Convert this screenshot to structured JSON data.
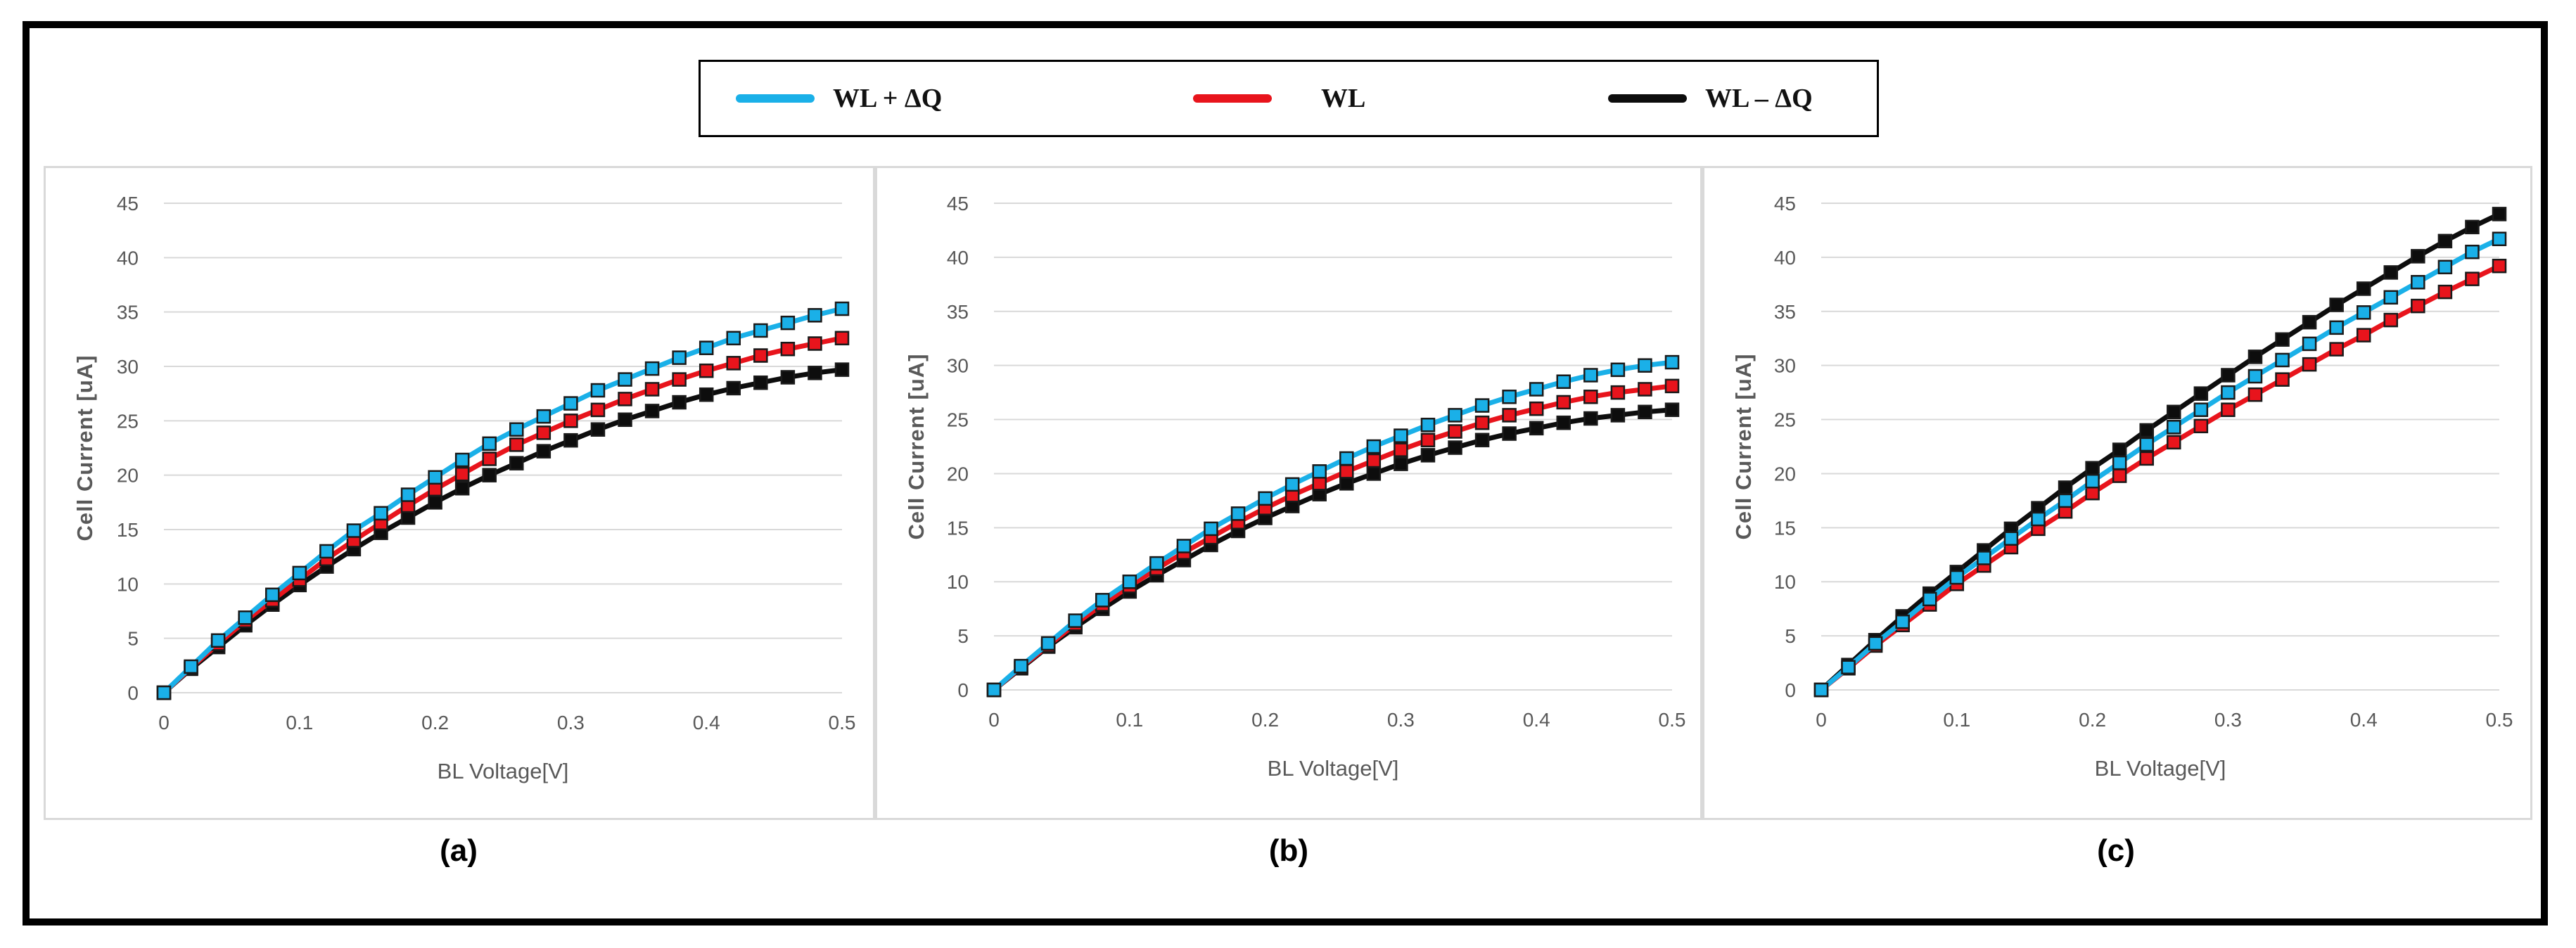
{
  "legend": {
    "items": [
      {
        "label": "WL + ΔQ",
        "color": "#1ab0e8"
      },
      {
        "label": "WL",
        "color": "#e8141c"
      },
      {
        "label": "WL – ΔQ",
        "color": "#0d0d0d"
      }
    ]
  },
  "captions": [
    "(a)",
    "(b)",
    "(c)"
  ],
  "chart_data": [
    {
      "type": "line",
      "title": "",
      "xlabel": "BL Voltage[V]",
      "ylabel": "Cell Current [uA]",
      "xlim": [
        0,
        0.5
      ],
      "ylim": [
        0,
        45
      ],
      "xticks": [
        "0",
        "0.1",
        "0.2",
        "0.3",
        "0.4",
        "0.5"
      ],
      "yticks": [
        "0",
        "5",
        "10",
        "15",
        "20",
        "25",
        "30",
        "35",
        "40",
        "45"
      ],
      "grid": true,
      "x": [
        0,
        0.02,
        0.04,
        0.06,
        0.08,
        0.1,
        0.12,
        0.14,
        0.16,
        0.18,
        0.2,
        0.22,
        0.24,
        0.26,
        0.28,
        0.3,
        0.32,
        0.34,
        0.36,
        0.38,
        0.4,
        0.42,
        0.44,
        0.46,
        0.48,
        0.5
      ],
      "series": [
        {
          "name": "WL + ΔQ",
          "color": "#1ab0e8",
          "values": [
            0,
            2.4,
            4.8,
            6.9,
            9.0,
            11.0,
            13.0,
            14.9,
            16.5,
            18.2,
            19.8,
            21.4,
            22.9,
            24.2,
            25.4,
            26.6,
            27.8,
            28.8,
            29.8,
            30.8,
            31.7,
            32.6,
            33.3,
            34.0,
            34.7,
            35.3
          ]
        },
        {
          "name": "WL",
          "color": "#e8141c",
          "values": [
            0,
            2.3,
            4.5,
            6.6,
            8.5,
            10.4,
            12.3,
            14.0,
            15.6,
            17.2,
            18.7,
            20.1,
            21.5,
            22.8,
            23.9,
            25.0,
            26.0,
            27.0,
            27.9,
            28.8,
            29.6,
            30.3,
            31.0,
            31.6,
            32.1,
            32.6
          ]
        },
        {
          "name": "WL – ΔQ",
          "color": "#0d0d0d",
          "values": [
            0,
            2.2,
            4.2,
            6.2,
            8.1,
            9.9,
            11.6,
            13.2,
            14.7,
            16.1,
            17.5,
            18.8,
            20.0,
            21.1,
            22.2,
            23.2,
            24.2,
            25.1,
            25.9,
            26.7,
            27.4,
            28.0,
            28.5,
            29.0,
            29.4,
            29.7
          ]
        }
      ]
    },
    {
      "type": "line",
      "title": "",
      "xlabel": "BL Voltage[V]",
      "ylabel": "Cell Current [uA]",
      "xlim": [
        0,
        0.5
      ],
      "ylim": [
        0,
        45
      ],
      "xticks": [
        "0",
        "0.1",
        "0.2",
        "0.3",
        "0.4",
        "0.5"
      ],
      "yticks": [
        "0",
        "5",
        "10",
        "15",
        "20",
        "25",
        "30",
        "35",
        "40",
        "45"
      ],
      "grid": true,
      "x": [
        0,
        0.02,
        0.04,
        0.06,
        0.08,
        0.1,
        0.12,
        0.14,
        0.16,
        0.18,
        0.2,
        0.22,
        0.24,
        0.26,
        0.28,
        0.3,
        0.32,
        0.34,
        0.36,
        0.38,
        0.4,
        0.42,
        0.44,
        0.46,
        0.48,
        0.5
      ],
      "series": [
        {
          "name": "WL + ΔQ",
          "color": "#1ab0e8",
          "values": [
            0,
            2.2,
            4.3,
            6.4,
            8.3,
            10.0,
            11.7,
            13.3,
            14.9,
            16.3,
            17.7,
            19.0,
            20.2,
            21.4,
            22.5,
            23.5,
            24.5,
            25.4,
            26.3,
            27.1,
            27.8,
            28.5,
            29.1,
            29.6,
            30.0,
            30.3
          ]
        },
        {
          "name": "WL",
          "color": "#e8141c",
          "values": [
            0,
            2.1,
            4.1,
            6.1,
            7.9,
            9.6,
            11.2,
            12.7,
            14.1,
            15.5,
            16.8,
            18.0,
            19.1,
            20.2,
            21.2,
            22.2,
            23.1,
            23.9,
            24.7,
            25.4,
            26.0,
            26.6,
            27.1,
            27.5,
            27.8,
            28.1
          ]
        },
        {
          "name": "WL – ΔQ",
          "color": "#0d0d0d",
          "values": [
            0,
            2.0,
            4.0,
            5.8,
            7.5,
            9.1,
            10.6,
            12.0,
            13.4,
            14.7,
            15.9,
            17.0,
            18.1,
            19.1,
            20.0,
            20.9,
            21.7,
            22.4,
            23.1,
            23.7,
            24.2,
            24.7,
            25.1,
            25.4,
            25.7,
            25.9
          ]
        }
      ]
    },
    {
      "type": "line",
      "title": "",
      "xlabel": "BL Voltage[V]",
      "ylabel": "Cell Current [uA]",
      "xlim": [
        0,
        0.5
      ],
      "ylim": [
        0,
        45
      ],
      "xticks": [
        "0",
        "0.1",
        "0.2",
        "0.3",
        "0.4",
        "0.5"
      ],
      "yticks": [
        "0",
        "5",
        "10",
        "15",
        "20",
        "25",
        "30",
        "35",
        "40",
        "45"
      ],
      "grid": true,
      "x": [
        0,
        0.02,
        0.04,
        0.06,
        0.08,
        0.1,
        0.12,
        0.14,
        0.16,
        0.18,
        0.2,
        0.22,
        0.24,
        0.26,
        0.28,
        0.3,
        0.32,
        0.34,
        0.36,
        0.38,
        0.4,
        0.42,
        0.44,
        0.46,
        0.48,
        0.5
      ],
      "series": [
        {
          "name": "WL + ΔQ",
          "color": "#1ab0e8",
          "values": [
            0,
            2.1,
            4.3,
            6.3,
            8.4,
            10.4,
            12.2,
            14.0,
            15.8,
            17.5,
            19.3,
            21.0,
            22.7,
            24.3,
            25.9,
            27.5,
            29.0,
            30.5,
            32.0,
            33.5,
            34.9,
            36.3,
            37.7,
            39.1,
            40.5,
            41.7
          ]
        },
        {
          "name": "WL",
          "color": "#e8141c",
          "values": [
            0,
            2.0,
            4.1,
            6.0,
            7.9,
            9.8,
            11.5,
            13.2,
            14.9,
            16.5,
            18.2,
            19.8,
            21.4,
            22.9,
            24.4,
            25.9,
            27.3,
            28.7,
            30.1,
            31.5,
            32.8,
            34.2,
            35.5,
            36.8,
            38.0,
            39.2
          ]
        },
        {
          "name": "WL – ΔQ",
          "color": "#0d0d0d",
          "values": [
            0,
            2.3,
            4.6,
            6.8,
            8.9,
            10.9,
            12.9,
            14.9,
            16.8,
            18.7,
            20.5,
            22.2,
            24.0,
            25.7,
            27.4,
            29.1,
            30.8,
            32.4,
            34.0,
            35.6,
            37.1,
            38.6,
            40.1,
            41.5,
            42.8,
            44.0
          ]
        }
      ]
    }
  ]
}
